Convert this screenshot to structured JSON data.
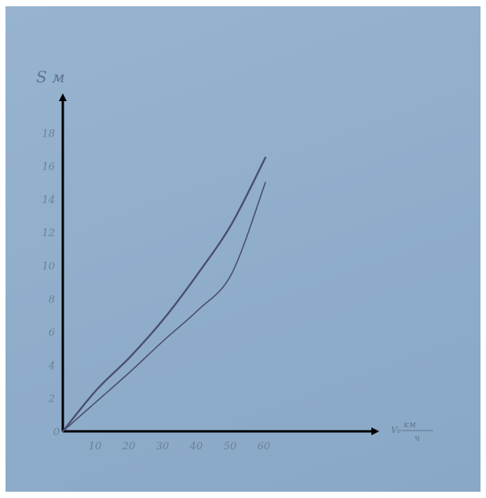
{
  "chart_data": {
    "type": "line",
    "title": "",
    "ylabel": "S м",
    "xlabel_top": "км",
    "xlabel_prefix": "V₀",
    "xlabel_bottom": "ч",
    "x_ticks": [
      "10",
      "20",
      "30",
      "40",
      "50",
      "60"
    ],
    "y_ticks": [
      "0",
      "2",
      "4",
      "6",
      "8",
      "10",
      "12",
      "14",
      "16",
      "18"
    ],
    "xlim": [
      0,
      70
    ],
    "ylim": [
      0,
      19
    ],
    "grid": false,
    "series": [
      {
        "x": [
          0,
          10,
          20,
          30,
          40,
          50,
          60
        ],
        "y": [
          0,
          2.5,
          4.5,
          6.8,
          9.5,
          12.5,
          16.5
        ]
      },
      {
        "x": [
          0,
          10,
          20,
          30,
          40,
          50,
          60
        ],
        "y": [
          0,
          1.8,
          3.6,
          5.5,
          7.3,
          9.5,
          15
        ]
      }
    ],
    "colors": {
      "curves": "#4a4f6e",
      "axes": "#000000",
      "ticks": "#6b7f9a"
    }
  }
}
